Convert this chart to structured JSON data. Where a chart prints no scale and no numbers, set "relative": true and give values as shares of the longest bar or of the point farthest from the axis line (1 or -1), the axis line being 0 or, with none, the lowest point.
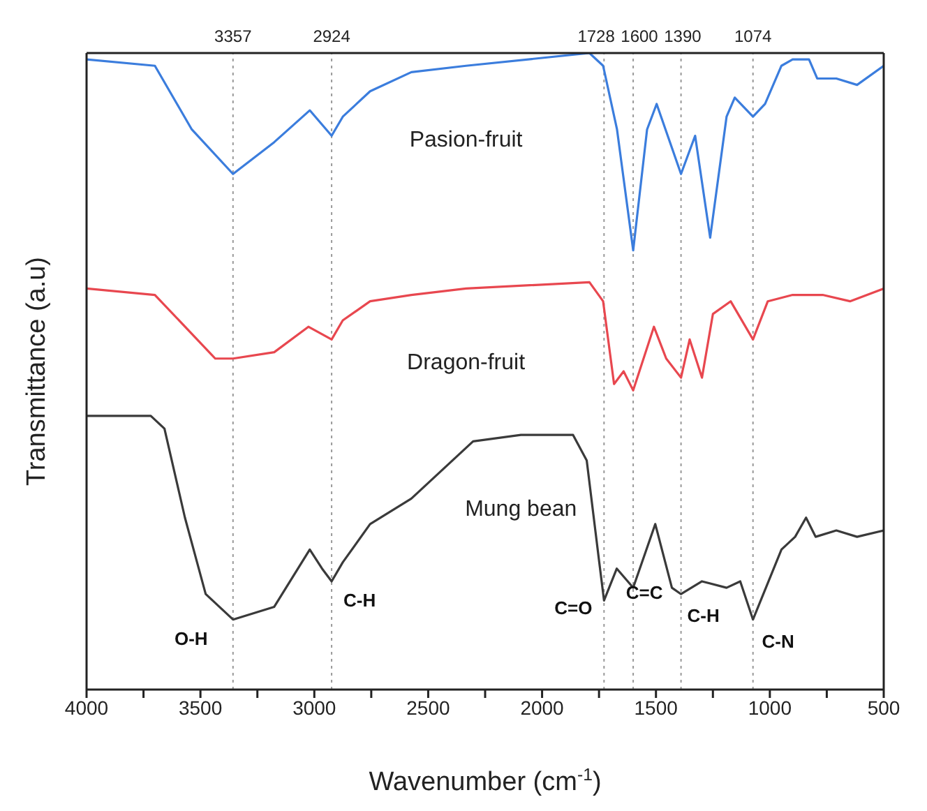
{
  "chart_data": {
    "type": "line",
    "relative": true,
    "xlabel": "Wavenumber (cm$^{-1}$)",
    "ylabel": "Transmittance (a.u)",
    "xlim": [
      4000,
      500
    ],
    "xticks": [
      4000,
      {
        "value": 3750,
        "label": null
      },
      3500,
      {
        "value": 3250,
        "label": null
      },
      3000,
      {
        "value": 2750,
        "label": null
      },
      2500,
      {
        "value": 2250,
        "label": null
      },
      2000,
      {
        "value": 1750,
        "label": null
      },
      1500,
      {
        "value": 1250,
        "label": null
      },
      1000,
      {
        "value": 750,
        "label": null
      },
      500
    ],
    "marker": "none",
    "line_style": "solid",
    "series": [
      {
        "name": "Pasion-fruit",
        "color": "#3b7ddd",
        "x": [
          4000,
          3700,
          3538,
          3357,
          3176,
          3020,
          2924,
          2875,
          2755,
          2574,
          2334,
          1792,
          1732,
          1671,
          1600,
          1539,
          1497,
          1390,
          1328,
          1262,
          1190,
          1154,
          1074,
          1021,
          949,
          900,
          828,
          792,
          708,
          617,
          500
        ],
        "values": [
          0.99,
          0.98,
          0.88,
          0.81,
          0.86,
          0.91,
          0.87,
          0.9,
          0.94,
          0.97,
          0.98,
          1.0,
          0.98,
          0.88,
          0.69,
          0.88,
          0.92,
          0.81,
          0.87,
          0.71,
          0.9,
          0.93,
          0.9,
          0.92,
          0.98,
          0.99,
          0.99,
          0.96,
          0.96,
          0.95,
          0.98
        ]
      },
      {
        "name": "Dragon-fruit",
        "color": "#e8474f",
        "x": [
          4000,
          3700,
          3435,
          3357,
          3176,
          3026,
          2924,
          2875,
          2755,
          2574,
          2334,
          1792,
          1732,
          1684,
          1642,
          1600,
          1509,
          1455,
          1390,
          1352,
          1298,
          1250,
          1172,
          1074,
          1009,
          900,
          768,
          648,
          500
        ],
        "values": [
          0.63,
          0.62,
          0.52,
          0.52,
          0.53,
          0.57,
          0.55,
          0.58,
          0.61,
          0.62,
          0.63,
          0.64,
          0.61,
          0.48,
          0.5,
          0.47,
          0.57,
          0.52,
          0.49,
          0.55,
          0.49,
          0.59,
          0.61,
          0.55,
          0.61,
          0.62,
          0.62,
          0.61,
          0.63
        ]
      },
      {
        "name": "Mung bean",
        "color": "#3a3a3a",
        "x": [
          4000,
          3718,
          3658,
          3568,
          3477,
          3357,
          3176,
          3020,
          2966,
          2924,
          2875,
          2755,
          2574,
          2303,
          2093,
          1864,
          1804,
          1749,
          1728,
          1672,
          1600,
          1503,
          1430,
          1390,
          1298,
          1190,
          1130,
          1074,
          949,
          889,
          841,
          799,
          708,
          617,
          500
        ],
        "values": [
          0.43,
          0.43,
          0.41,
          0.27,
          0.15,
          0.11,
          0.13,
          0.22,
          0.19,
          0.17,
          0.2,
          0.26,
          0.3,
          0.39,
          0.4,
          0.4,
          0.36,
          0.2,
          0.14,
          0.19,
          0.16,
          0.26,
          0.16,
          0.15,
          0.17,
          0.16,
          0.17,
          0.11,
          0.22,
          0.24,
          0.27,
          0.24,
          0.25,
          0.24,
          0.25
        ]
      }
    ],
    "ref_lines": [
      {
        "axis": "x",
        "value": 3357,
        "label": "3357",
        "color": "#999999",
        "line_style": "dotted"
      },
      {
        "axis": "x",
        "value": 2924,
        "label": "2924",
        "color": "#999999",
        "line_style": "dotted"
      },
      {
        "axis": "x",
        "value": 1728,
        "label": "1728",
        "color": "#999999",
        "line_style": "dotted"
      },
      {
        "axis": "x",
        "value": 1600,
        "label": "1600",
        "color": "#999999",
        "line_style": "dotted"
      },
      {
        "axis": "x",
        "value": 1390,
        "label": "1390",
        "color": "#999999",
        "line_style": "dotted"
      },
      {
        "axis": "x",
        "value": 1074,
        "label": "1074",
        "color": "#999999",
        "line_style": "dotted"
      }
    ],
    "annotations": [
      {
        "text": "O-H",
        "x": 3357,
        "y": 0.11
      },
      {
        "text": "C-H",
        "x": 2924,
        "y": 0.17
      },
      {
        "text": "C=O",
        "x": 1728,
        "y": 0.14
      },
      {
        "text": "C=C",
        "x": 1600,
        "y": 0.16
      },
      {
        "text": "C-H",
        "x": 1390,
        "y": 0.15
      },
      {
        "text": "C-N",
        "x": 1074,
        "y": 0.11
      }
    ]
  }
}
